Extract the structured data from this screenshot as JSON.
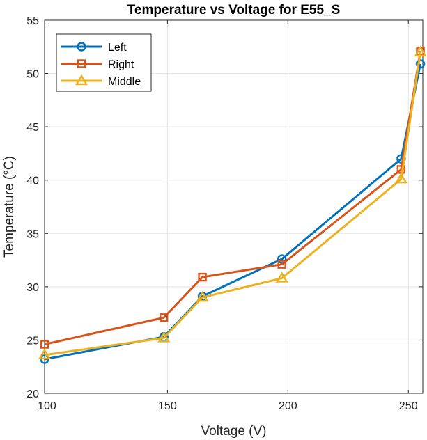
{
  "chart_data": {
    "type": "line",
    "title": "Temperature vs Voltage for E55_S",
    "xlabel": "Voltage (V)",
    "ylabel": "Temperature (°C)",
    "xlim": [
      99,
      256
    ],
    "ylim": [
      20,
      55
    ],
    "xticks": [
      100,
      150,
      200,
      250
    ],
    "yticks": [
      20,
      25,
      30,
      35,
      40,
      45,
      50,
      55
    ],
    "grid": true,
    "legend_position": "top-left",
    "series": [
      {
        "name": "Left",
        "color": "#0072BD",
        "marker": "circle",
        "x": [
          99,
          148.5,
          164.5,
          197.5,
          247,
          255
        ],
        "y": [
          23.2,
          25.3,
          29.1,
          32.6,
          42,
          50.9
        ]
      },
      {
        "name": "Right",
        "color": "#D95319",
        "marker": "square",
        "x": [
          99,
          148.5,
          164.5,
          197.5,
          247,
          255
        ],
        "y": [
          24.6,
          27.1,
          30.9,
          32.1,
          41,
          52.1
        ]
      },
      {
        "name": "Middle",
        "color": "#EDB120",
        "marker": "triangle",
        "x": [
          99,
          148.5,
          164.5,
          197.5,
          247,
          255
        ],
        "y": [
          23.6,
          25.2,
          29,
          30.8,
          40.1,
          52
        ]
      }
    ]
  }
}
